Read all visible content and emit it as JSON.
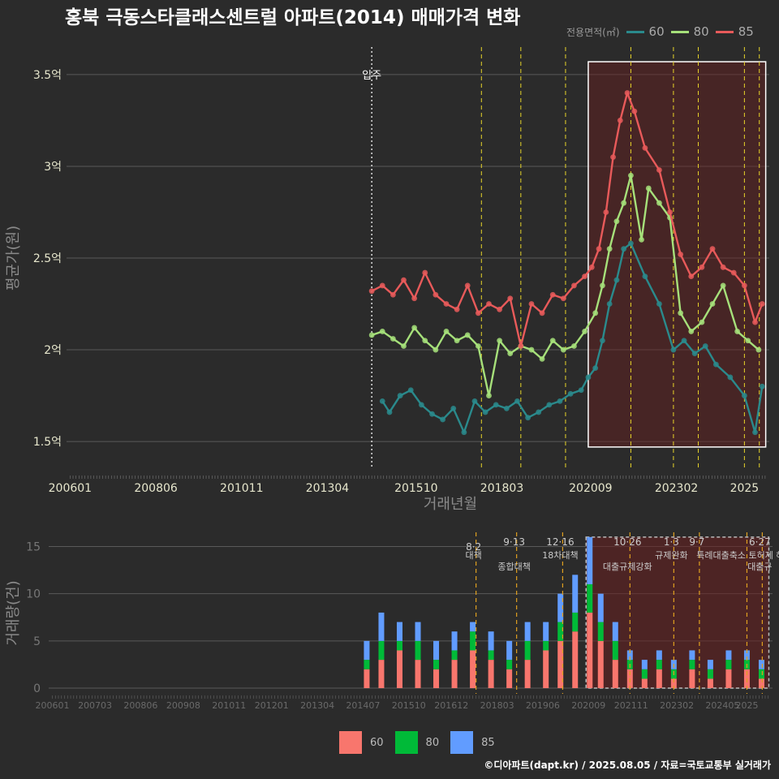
{
  "title": "홍북 극동스타클래스센트럴 아파트(2014) 매매가격 변화",
  "legend": {
    "title": "전용면적(㎡)",
    "items": [
      {
        "label": "60",
        "color": "#2a8a8c"
      },
      {
        "label": "80",
        "color": "#a6e07a"
      },
      {
        "label": "85",
        "color": "#e85a5a"
      }
    ]
  },
  "bar_legend": {
    "items": [
      {
        "label": "60",
        "color": "#f8766d"
      },
      {
        "label": "80",
        "color": "#00ba38"
      },
      {
        "label": "85",
        "color": "#619cff"
      }
    ]
  },
  "caption": "©디아파트(dapt.kr) / 2025.08.05 / 자료=국토교통부 실거래가",
  "chart_data": [
    {
      "type": "line",
      "xlabel": "거래년월",
      "ylabel": "평균가(원)",
      "x_ticks": [
        "200601",
        "200806",
        "201011",
        "201304",
        "201510",
        "201803",
        "202009",
        "202302",
        "2025"
      ],
      "y_ticks": [
        {
          "value": 1.5,
          "label": "1.5억"
        },
        {
          "value": 2.0,
          "label": "2억"
        },
        {
          "value": 2.5,
          "label": "2.5억"
        },
        {
          "value": 3.0,
          "label": "3억"
        },
        {
          "value": 3.5,
          "label": "3.5억"
        }
      ],
      "ylim": [
        1.35,
        3.65
      ],
      "xlim": [
        2005.9,
        2025.7
      ],
      "annotation": {
        "label": "입주",
        "x": 2014.5
      },
      "policy_lines": [
        2017.59,
        2018.7,
        2019.96,
        2021.8,
        2023.0,
        2023.7,
        2025.0,
        2025.42
      ],
      "highlight": {
        "x0": 2020.6,
        "x1": 2025.6,
        "y0": 1.47,
        "y1": 3.57
      },
      "series": [
        {
          "name": "60",
          "color": "#2a8a8c",
          "x": [
            2014.8,
            2015.0,
            2015.3,
            2015.6,
            2015.9,
            2016.2,
            2016.5,
            2016.8,
            2017.1,
            2017.4,
            2017.7,
            2018.0,
            2018.3,
            2018.6,
            2018.9,
            2019.2,
            2019.5,
            2019.8,
            2020.1,
            2020.4,
            2020.6,
            2020.8,
            2021.0,
            2021.2,
            2021.4,
            2021.6,
            2021.8,
            2022.2,
            2022.6,
            2023.0,
            2023.3,
            2023.6,
            2023.9,
            2024.2,
            2024.6,
            2025.0,
            2025.3,
            2025.5
          ],
          "y": [
            1.72,
            1.66,
            1.75,
            1.78,
            1.7,
            1.65,
            1.62,
            1.68,
            1.55,
            1.72,
            1.66,
            1.7,
            1.68,
            1.72,
            1.63,
            1.66,
            1.7,
            1.72,
            1.76,
            1.78,
            1.85,
            1.9,
            2.05,
            2.25,
            2.38,
            2.55,
            2.58,
            2.4,
            2.25,
            2.0,
            2.05,
            1.98,
            2.02,
            1.92,
            1.85,
            1.75,
            1.55,
            1.8
          ]
        },
        {
          "name": "80",
          "color": "#a6e07a",
          "x": [
            2014.5,
            2014.8,
            2015.1,
            2015.4,
            2015.7,
            2016.0,
            2016.3,
            2016.6,
            2016.9,
            2017.2,
            2017.5,
            2017.8,
            2018.1,
            2018.4,
            2018.7,
            2019.0,
            2019.3,
            2019.6,
            2019.9,
            2020.2,
            2020.5,
            2020.8,
            2021.0,
            2021.2,
            2021.4,
            2021.6,
            2021.8,
            2022.1,
            2022.3,
            2022.6,
            2022.9,
            2023.2,
            2023.5,
            2023.8,
            2024.1,
            2024.4,
            2024.8,
            2025.1,
            2025.4
          ],
          "y": [
            2.08,
            2.1,
            2.06,
            2.02,
            2.12,
            2.05,
            2.0,
            2.1,
            2.05,
            2.08,
            2.02,
            1.75,
            2.05,
            1.98,
            2.02,
            2.0,
            1.95,
            2.05,
            2.0,
            2.02,
            2.1,
            2.2,
            2.35,
            2.55,
            2.7,
            2.8,
            2.95,
            2.6,
            2.88,
            2.8,
            2.72,
            2.2,
            2.1,
            2.15,
            2.25,
            2.35,
            2.1,
            2.05,
            2.0
          ]
        },
        {
          "name": "85",
          "color": "#e85a5a",
          "x": [
            2014.5,
            2014.8,
            2015.1,
            2015.4,
            2015.7,
            2016.0,
            2016.3,
            2016.6,
            2016.9,
            2017.2,
            2017.5,
            2017.8,
            2018.1,
            2018.4,
            2018.7,
            2019.0,
            2019.3,
            2019.6,
            2019.9,
            2020.2,
            2020.5,
            2020.7,
            2020.9,
            2021.1,
            2021.3,
            2021.5,
            2021.7,
            2021.9,
            2022.2,
            2022.6,
            2022.9,
            2023.2,
            2023.5,
            2023.8,
            2024.1,
            2024.4,
            2024.7,
            2025.0,
            2025.3,
            2025.5
          ],
          "y": [
            2.32,
            2.35,
            2.3,
            2.38,
            2.28,
            2.42,
            2.3,
            2.25,
            2.22,
            2.35,
            2.2,
            2.25,
            2.22,
            2.28,
            2.02,
            2.25,
            2.2,
            2.3,
            2.28,
            2.35,
            2.4,
            2.45,
            2.55,
            2.75,
            3.05,
            3.25,
            3.4,
            3.3,
            3.1,
            2.98,
            2.75,
            2.52,
            2.4,
            2.45,
            2.55,
            2.45,
            2.42,
            2.35,
            2.15,
            2.25
          ]
        }
      ]
    },
    {
      "type": "bar",
      "ylabel": "거래량(건)",
      "x_ticks": [
        "200601",
        "200703",
        "200806",
        "200908",
        "201011",
        "201201",
        "201304",
        "201407",
        "201510",
        "201612",
        "201803",
        "201906",
        "202009",
        "202111",
        "202302",
        "202405",
        "2025"
      ],
      "y_ticks": [
        0,
        5,
        10,
        15
      ],
      "ylim": [
        -0.6,
        16.5
      ],
      "xlim": [
        2005.9,
        2025.7
      ],
      "policy_lines": [
        2017.59,
        2018.7,
        2019.96,
        2021.8,
        2023.0,
        2023.7,
        2025.0,
        2025.42
      ],
      "policy_labels": [
        {
          "date": "8·2",
          "text": "대책",
          "x": 2017.59
        },
        {
          "date": "9·13",
          "text": "종합대책",
          "x": 2018.7
        },
        {
          "date": "12·16",
          "text": "18차대책",
          "x": 2019.96
        },
        {
          "date": "10·26",
          "text": "대출규제강화",
          "x": 2021.8
        },
        {
          "date": "1·3",
          "text": "규제완화",
          "x": 2023.0
        },
        {
          "date": "9·7",
          "text": "",
          "x": 2023.7
        },
        {
          "date": "",
          "text": "특례대출축소 토허제 해제",
          "x": 2025.0
        },
        {
          "date": "6·27",
          "text": "대출규",
          "x": 2025.42
        }
      ],
      "highlight": {
        "x0": 2020.6,
        "x1": 2025.6,
        "y0": 0,
        "y1": 16
      },
      "series": [
        {
          "name": "60",
          "color": "#f8766d",
          "x": [
            2014.6,
            2015.0,
            2015.5,
            2016.0,
            2016.5,
            2017.0,
            2017.5,
            2018.0,
            2018.5,
            2019.0,
            2019.5,
            2019.9,
            2020.3,
            2020.7,
            2021.0,
            2021.4,
            2021.8,
            2022.2,
            2022.6,
            2023.0,
            2023.5,
            2024.0,
            2024.5,
            2025.0,
            2025.4
          ],
          "values": [
            2,
            3,
            4,
            3,
            2,
            3,
            4,
            3,
            2,
            3,
            4,
            5,
            6,
            8,
            5,
            3,
            2,
            1,
            2,
            1,
            2,
            1,
            2,
            2,
            1
          ]
        },
        {
          "name": "80",
          "color": "#00ba38",
          "x": [
            2014.6,
            2015.0,
            2015.5,
            2016.0,
            2016.5,
            2017.0,
            2017.5,
            2018.0,
            2018.5,
            2019.0,
            2019.5,
            2019.9,
            2020.3,
            2020.7,
            2021.0,
            2021.4,
            2021.8,
            2022.2,
            2022.6,
            2023.0,
            2023.5,
            2024.0,
            2024.5,
            2025.0,
            2025.4
          ],
          "values": [
            1,
            2,
            1,
            2,
            1,
            1,
            2,
            1,
            1,
            2,
            1,
            2,
            2,
            3,
            2,
            2,
            1,
            1,
            1,
            1,
            1,
            1,
            1,
            1,
            1
          ]
        },
        {
          "name": "85",
          "color": "#619cff",
          "x": [
            2014.6,
            2015.0,
            2015.5,
            2016.0,
            2016.5,
            2017.0,
            2017.5,
            2018.0,
            2018.5,
            2019.0,
            2019.5,
            2019.9,
            2020.3,
            2020.7,
            2021.0,
            2021.4,
            2021.8,
            2022.2,
            2022.6,
            2023.0,
            2023.5,
            2024.0,
            2024.5,
            2025.0,
            2025.4
          ],
          "values": [
            2,
            3,
            2,
            2,
            2,
            2,
            1,
            2,
            2,
            2,
            2,
            3,
            4,
            5,
            3,
            2,
            1,
            1,
            1,
            1,
            1,
            1,
            1,
            1,
            1
          ]
        }
      ]
    }
  ]
}
